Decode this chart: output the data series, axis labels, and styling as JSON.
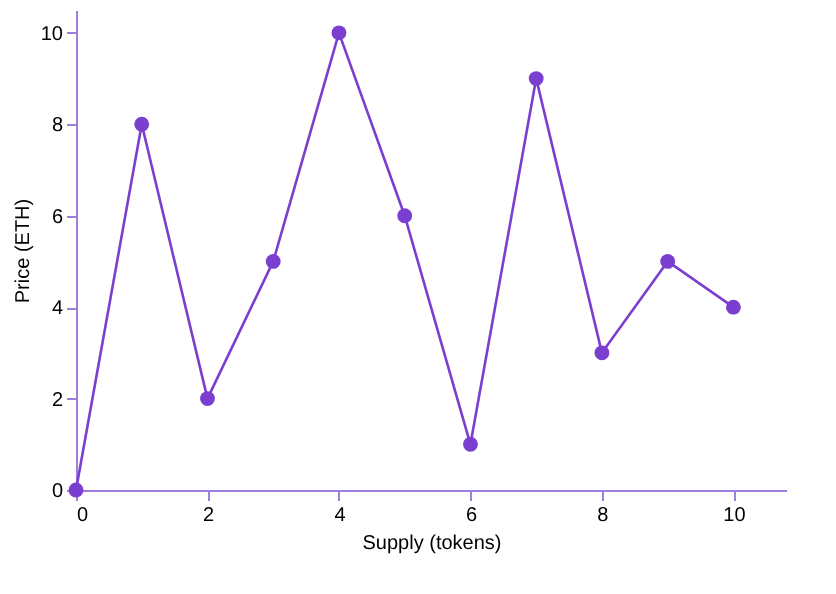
{
  "chart_data": {
    "type": "line",
    "xlabel": "Supply (tokens)",
    "ylabel": "Price (ETH)",
    "x": [
      0,
      1,
      2,
      3,
      4,
      5,
      6,
      7,
      8,
      9,
      10
    ],
    "series": [
      {
        "color": "#7b3fd0",
        "values": [
          0,
          8,
          2,
          5,
          10,
          6,
          1,
          9,
          3,
          5,
          4
        ]
      }
    ],
    "xlim": [
      0,
      10.8
    ],
    "ylim": [
      0,
      10.5
    ],
    "xticks": [
      0,
      2,
      4,
      6,
      8,
      10
    ],
    "yticks": [
      0,
      2,
      4,
      6,
      8,
      10
    ],
    "grid": false,
    "marker": "circle",
    "line_style": "solid"
  }
}
